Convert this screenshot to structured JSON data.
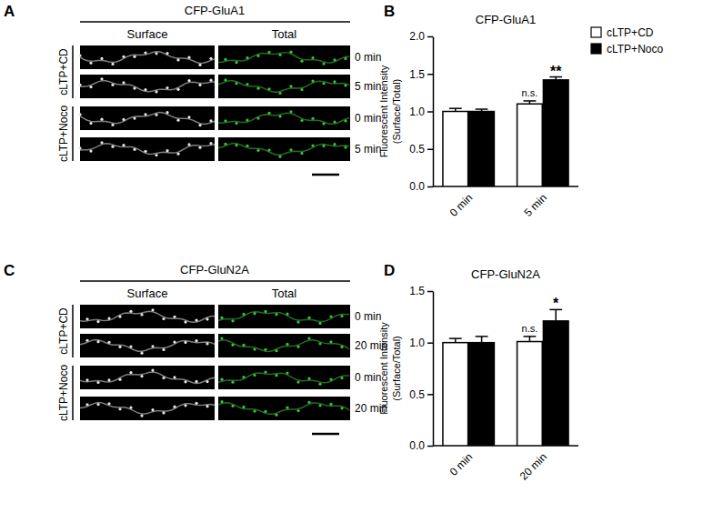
{
  "chart_data": [
    {
      "type": "bar",
      "panel_label": "B",
      "title": "CFP-GluA1",
      "y_label": [
        "Fluorescent Intensity",
        "(Surface/Total)"
      ],
      "categories": [
        "0 min",
        "5 min"
      ],
      "series": [
        {
          "name": "cLTP+CD",
          "color": "#ffffff",
          "values": [
            1.0,
            1.1
          ],
          "errors": [
            0.04,
            0.04
          ]
        },
        {
          "name": "cLTP+Noco",
          "color": "#000000",
          "values": [
            1.0,
            1.42
          ],
          "errors": [
            0.03,
            0.04
          ]
        }
      ],
      "ylim": [
        0,
        2
      ],
      "yticks": [
        {
          "value": 0,
          "label": "0.0"
        },
        {
          "value": 0.5,
          "label": "0.5"
        },
        {
          "value": 1,
          "label": "1.0"
        },
        {
          "value": 1.5,
          "label": "1.5"
        },
        {
          "value": 2,
          "label": "2.0"
        }
      ],
      "legend": "right",
      "annotations": [
        {
          "text": "n.s.",
          "category": 1,
          "series": 0
        },
        {
          "text": "**",
          "category": 1,
          "series": 1
        }
      ]
    },
    {
      "type": "bar",
      "panel_label": "D",
      "title": "CFP-GluN2A",
      "y_label": [
        "Fluorescent Intensity",
        "(Surface/Total)"
      ],
      "categories": [
        "0 min",
        "20 min"
      ],
      "series": [
        {
          "name": "cLTP+CD",
          "color": "#ffffff",
          "values": [
            1.0,
            1.01
          ],
          "errors": [
            0.04,
            0.05
          ]
        },
        {
          "name": "cLTP+Noco",
          "color": "#000000",
          "values": [
            1.0,
            1.21
          ],
          "errors": [
            0.06,
            0.11
          ]
        }
      ],
      "ylim": [
        0,
        1.5
      ],
      "yticks": [
        {
          "value": 0,
          "label": "0.0"
        },
        {
          "value": 0.5,
          "label": "0.5"
        },
        {
          "value": 1,
          "label": "1.0"
        },
        {
          "value": 1.5,
          "label": "1.5"
        }
      ],
      "annotations": [
        {
          "text": "n.s.",
          "category": 1,
          "series": 0
        },
        {
          "text": "*",
          "category": 1,
          "series": 1
        }
      ]
    }
  ],
  "image_panels": [
    {
      "panel_label": "A",
      "title": "CFP-GluA1",
      "columns": [
        "Surface",
        "Total"
      ],
      "groups": [
        {
          "label": "cLTP+CD",
          "rows": [
            "0 min",
            "5 min"
          ]
        },
        {
          "label": "cLTP+Noco",
          "rows": [
            "0 min",
            "5 min"
          ]
        }
      ]
    },
    {
      "panel_label": "C",
      "title": "CFP-GluN2A",
      "columns": [
        "Surface",
        "Total"
      ],
      "groups": [
        {
          "label": "cLTP+CD",
          "rows": [
            "0 min",
            "20 min"
          ]
        },
        {
          "label": "cLTP+Noco",
          "rows": [
            "0 min",
            "20 min"
          ]
        }
      ]
    }
  ]
}
